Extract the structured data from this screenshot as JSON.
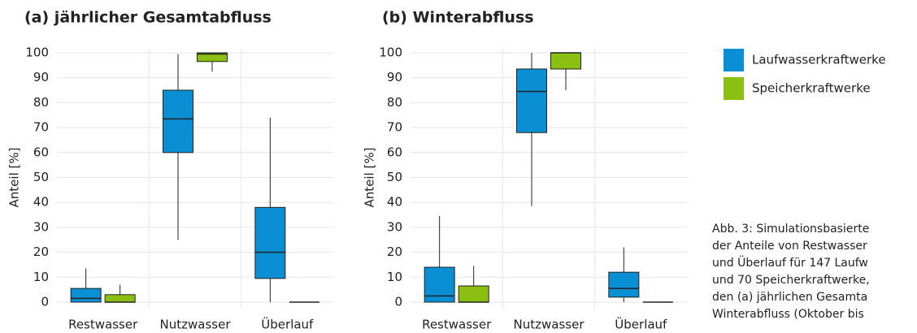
{
  "chart_data": [
    {
      "type": "box",
      "title": "(a) jährlicher Gesamtabfluss",
      "ylabel": "Anteil [%]",
      "categories": [
        "Restwasser",
        "Nutzwasser",
        "Überlauf"
      ],
      "ylim": [
        0,
        100
      ],
      "yticks": [
        0,
        10,
        20,
        30,
        40,
        50,
        60,
        70,
        80,
        90,
        100
      ],
      "grid": true,
      "series": [
        {
          "name": "Laufwasserkraftwerke",
          "color": "#0a8fd4",
          "values": [
            {
              "min": 0,
              "q1": 0,
              "median": 1.5,
              "q3": 5.5,
              "max": 13.5
            },
            {
              "min": 25,
              "q1": 60,
              "median": 73.5,
              "q3": 85,
              "max": 99.5
            },
            {
              "min": 0,
              "q1": 9.5,
              "median": 20,
              "q3": 38,
              "max": 74
            }
          ]
        },
        {
          "name": "Speicherkraftwerke",
          "color": "#8cbf13",
          "values": [
            {
              "min": 0,
              "q1": 0,
              "median": 0,
              "q3": 3,
              "max": 7
            },
            {
              "min": 92.5,
              "q1": 96.5,
              "median": 99.5,
              "q3": 100,
              "max": 100
            },
            {
              "min": 0,
              "q1": 0,
              "median": 0,
              "q3": 0,
              "max": 0
            }
          ]
        }
      ]
    },
    {
      "type": "box",
      "title": "(b) Winterabfluss",
      "ylabel": "Anteil [%]",
      "categories": [
        "Restwasser",
        "Nutzwasser",
        "Überlauf"
      ],
      "ylim": [
        0,
        100
      ],
      "yticks": [
        0,
        10,
        20,
        30,
        40,
        50,
        60,
        70,
        80,
        90,
        100
      ],
      "grid": true,
      "series": [
        {
          "color": "#0a8fd4",
          "values": [
            {
              "min": 0,
              "q1": 0,
              "median": 2.5,
              "q3": 14,
              "max": 34.5
            },
            {
              "min": 38.5,
              "q1": 68,
              "median": 84.5,
              "q3": 93.5,
              "max": 100
            },
            {
              "min": 0,
              "q1": 2,
              "median": 5.5,
              "q3": 12,
              "max": 22
            }
          ]
        },
        {
          "color": "#8cbf13",
          "values": [
            {
              "min": 0,
              "q1": 0,
              "median": 0,
              "q3": 6.5,
              "max": 14.5
            },
            {
              "min": 85,
              "q1": 93.5,
              "median": 100,
              "q3": 100,
              "max": 100
            },
            {
              "min": 0,
              "q1": 0,
              "median": 0,
              "q3": 0,
              "max": 0
            }
          ]
        }
      ]
    }
  ],
  "caption": [
    "Abb. 3: Simulationsbasierte",
    "der Anteile von Restwasser",
    "und Überlauf für 147 Laufw",
    "und 70 Speicherkraftwerke,",
    "den (a) jährlichen Gesamta",
    "Winterabfluss (Oktober bis"
  ]
}
